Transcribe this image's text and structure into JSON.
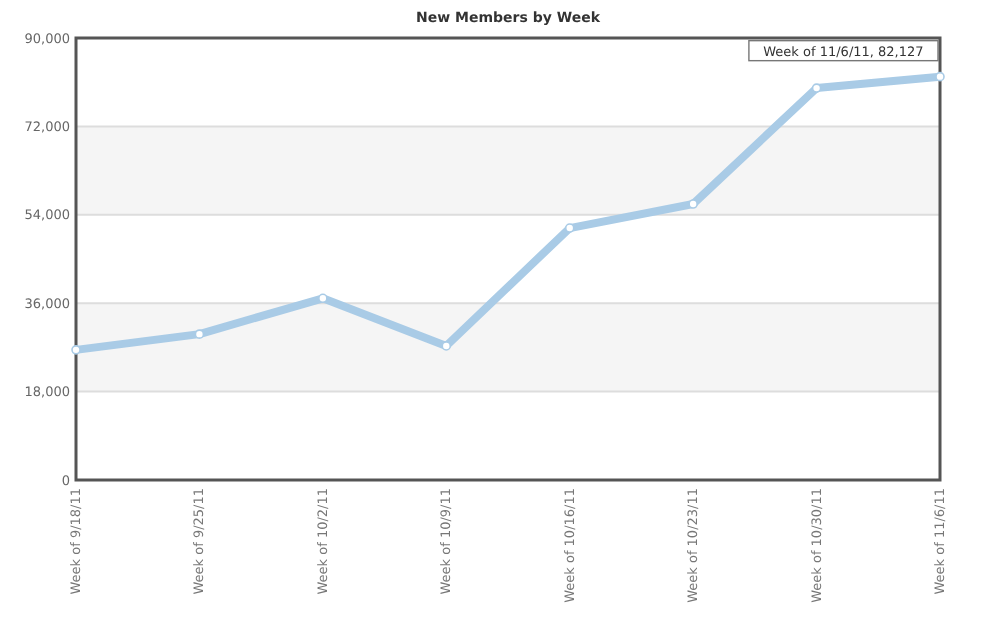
{
  "chart_data": {
    "type": "line",
    "title": "New Members by Week",
    "categories": [
      "Week of 9/18/11",
      "Week of 9/25/11",
      "Week of 10/2/11",
      "Week of 10/9/11",
      "Week of 10/16/11",
      "Week of 10/23/11",
      "Week of 10/30/11",
      "Week of 11/6/11"
    ],
    "series": [
      {
        "color": "#a9cbe6",
        "values": [
          26500,
          29700,
          37000,
          27300,
          51300,
          56200,
          79800,
          82127
        ]
      }
    ],
    "ylim": [
      0,
      90000
    ],
    "yticks": [
      {
        "value": 0,
        "label": "0"
      },
      {
        "value": 18000,
        "label": "18,000"
      },
      {
        "value": 36000,
        "label": "36,000"
      },
      {
        "value": 54000,
        "label": "54,000"
      },
      {
        "value": 72000,
        "label": "72,000"
      },
      {
        "value": 90000,
        "label": "90,000"
      }
    ],
    "grid": "y",
    "marker": "circle",
    "annotations": [
      {
        "text": "Week of 11/6/11, 82,127",
        "x": "Week of 11/6/11",
        "y": 82127
      }
    ]
  }
}
